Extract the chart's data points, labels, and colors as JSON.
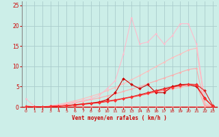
{
  "xlabel": "Vent moyen/en rafales ( km/h )",
  "bg_color": "#cceee8",
  "grid_color": "#aacccc",
  "xlim": [
    -0.5,
    23.5
  ],
  "ylim": [
    0,
    26
  ],
  "yticks": [
    0,
    5,
    10,
    15,
    20,
    25
  ],
  "xticks": [
    0,
    1,
    2,
    3,
    4,
    5,
    6,
    7,
    8,
    9,
    10,
    11,
    12,
    13,
    14,
    15,
    16,
    17,
    18,
    19,
    20,
    21,
    22,
    23
  ],
  "series": [
    {
      "x": [
        0,
        1,
        2,
        3,
        4,
        5,
        6,
        7,
        8,
        9,
        10,
        11,
        12,
        13,
        14,
        15,
        16,
        17,
        18,
        19,
        20,
        21,
        22,
        23
      ],
      "y": [
        0.3,
        0.0,
        0.0,
        0.0,
        0.0,
        0.0,
        0.0,
        0.0,
        0.0,
        0.0,
        0.0,
        0.0,
        0.0,
        0.0,
        0.0,
        0.0,
        0.0,
        0.0,
        0.0,
        0.0,
        0.0,
        0.0,
        0.0,
        0.0
      ],
      "color": "#ff8888",
      "lw": 0.8,
      "marker": "o",
      "ms": 1.5,
      "mfc": "#ff8888"
    },
    {
      "x": [
        0,
        1,
        2,
        3,
        4,
        5,
        6,
        7,
        8,
        9,
        10,
        11,
        12,
        13,
        14,
        15,
        16,
        17,
        18,
        19,
        20,
        21,
        22,
        23
      ],
      "y": [
        0,
        0,
        0,
        0.1,
        0.2,
        0.4,
        0.6,
        0.8,
        1.0,
        1.2,
        1.5,
        1.8,
        2.1,
        2.4,
        2.8,
        3.2,
        3.6,
        4.0,
        4.4,
        4.8,
        5.2,
        5.5,
        0.2,
        0.0
      ],
      "color": "#ffaaaa",
      "lw": 0.8,
      "marker": "o",
      "ms": 1.5,
      "mfc": "#ffaaaa"
    },
    {
      "x": [
        0,
        1,
        2,
        3,
        4,
        5,
        6,
        7,
        8,
        9,
        10,
        11,
        12,
        13,
        14,
        15,
        16,
        17,
        18,
        19,
        20,
        21,
        22,
        23
      ],
      "y": [
        0,
        0,
        0,
        0.2,
        0.4,
        0.7,
        1.0,
        1.4,
        1.8,
        2.2,
        2.7,
        3.2,
        3.8,
        4.4,
        5.0,
        5.7,
        6.4,
        7.1,
        7.8,
        8.5,
        9.2,
        9.5,
        0.5,
        0.0
      ],
      "color": "#ffaaaa",
      "lw": 0.8,
      "marker": "o",
      "ms": 1.5,
      "mfc": "#ffaaaa"
    },
    {
      "x": [
        0,
        1,
        2,
        3,
        4,
        5,
        6,
        7,
        8,
        9,
        10,
        11,
        12,
        13,
        14,
        15,
        16,
        17,
        18,
        19,
        20,
        21,
        22,
        23
      ],
      "y": [
        0,
        0,
        0,
        0.3,
        0.6,
        1.0,
        1.5,
        2.0,
        2.6,
        3.2,
        4.0,
        4.8,
        5.7,
        6.7,
        7.7,
        8.8,
        9.9,
        11.0,
        12.1,
        13.0,
        14.0,
        14.5,
        1.0,
        0.0
      ],
      "color": "#ffbbbb",
      "lw": 0.8,
      "marker": "o",
      "ms": 1.5,
      "mfc": "#ffbbbb"
    },
    {
      "x": [
        0,
        1,
        2,
        3,
        4,
        5,
        6,
        7,
        8,
        9,
        10,
        11,
        12,
        13,
        14,
        15,
        16,
        17,
        18,
        19,
        20,
        21,
        22,
        23
      ],
      "y": [
        2.0,
        0.2,
        0.0,
        0.2,
        0.5,
        0.8,
        1.2,
        1.6,
        2.0,
        2.8,
        4.5,
        6.5,
        13.0,
        22.0,
        15.5,
        16.0,
        18.0,
        15.5,
        17.5,
        20.5,
        20.5,
        15.5,
        2.0,
        0.2
      ],
      "color": "#ffbbcc",
      "lw": 0.8,
      "marker": "o",
      "ms": 1.5,
      "mfc": "#ffbbcc"
    },
    {
      "x": [
        0,
        1,
        2,
        3,
        4,
        5,
        6,
        7,
        8,
        9,
        10,
        11,
        12,
        13,
        14,
        15,
        16,
        17,
        18,
        19,
        20,
        21,
        22,
        23
      ],
      "y": [
        0,
        0,
        0,
        0.1,
        0.2,
        0.3,
        0.5,
        0.7,
        0.9,
        1.1,
        1.4,
        1.7,
        2.1,
        2.5,
        3.0,
        3.5,
        4.0,
        4.5,
        5.0,
        5.4,
        5.6,
        5.5,
        4.0,
        0.3
      ],
      "color": "#dd2222",
      "lw": 0.8,
      "marker": "D",
      "ms": 2.0,
      "mfc": "#dd2222"
    },
    {
      "x": [
        0,
        1,
        2,
        3,
        4,
        5,
        6,
        7,
        8,
        9,
        10,
        11,
        12,
        13,
        14,
        15,
        16,
        17,
        18,
        19,
        20,
        21,
        22,
        23
      ],
      "y": [
        0,
        0,
        0,
        0.1,
        0.2,
        0.3,
        0.5,
        0.7,
        0.9,
        1.2,
        1.8,
        3.5,
        7.0,
        5.5,
        4.5,
        5.5,
        3.5,
        3.5,
        5.0,
        5.5,
        5.5,
        5.0,
        2.2,
        0.1
      ],
      "color": "#cc0000",
      "lw": 0.8,
      "marker": "D",
      "ms": 2.0,
      "mfc": "#cc0000"
    },
    {
      "x": [
        0,
        1,
        2,
        3,
        4,
        5,
        6,
        7,
        8,
        9,
        10,
        11,
        12,
        13,
        14,
        15,
        16,
        17,
        18,
        19,
        20,
        21,
        22,
        23
      ],
      "y": [
        0,
        0,
        0,
        0.1,
        0.2,
        0.3,
        0.4,
        0.6,
        0.8,
        1.0,
        1.3,
        1.6,
        2.0,
        2.4,
        2.8,
        3.3,
        3.8,
        4.3,
        4.8,
        5.2,
        5.5,
        5.4,
        2.0,
        0.1
      ],
      "color": "#ff3333",
      "lw": 0.8,
      "marker": "D",
      "ms": 2.0,
      "mfc": "#ff3333"
    }
  ]
}
